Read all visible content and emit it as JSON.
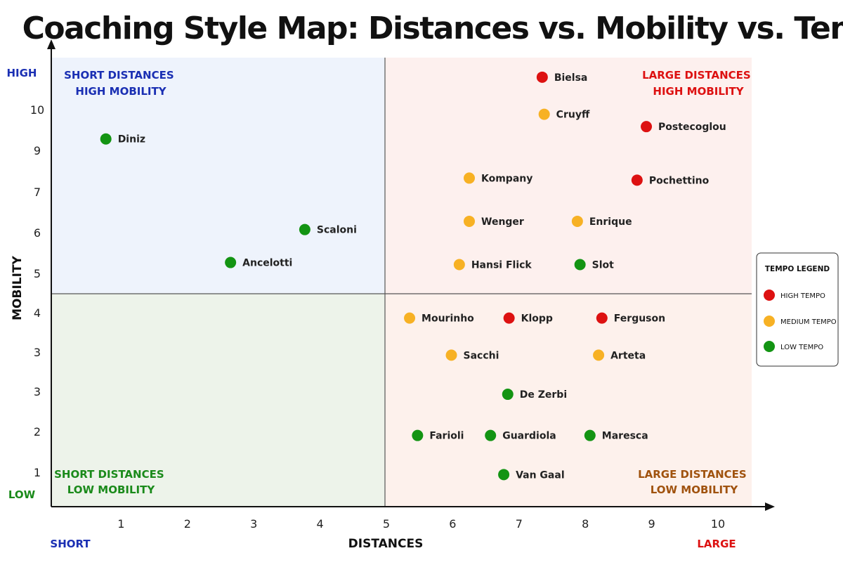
{
  "chart_data": {
    "type": "scatter",
    "title": "Coaching Style Map: Distances vs. Mobility vs. Tempo",
    "xlabel": "DISTANCES",
    "ylabel": "MOBILITY",
    "x_end_labels": {
      "low": "SHORT",
      "high": "LARGE"
    },
    "y_end_labels": {
      "low": "LOW",
      "high": "HIGH"
    },
    "x_ticks": [
      "1",
      "2",
      "3",
      "4",
      "5",
      "6",
      "7",
      "8",
      "9",
      "10"
    ],
    "y_ticks": [
      "1",
      "2",
      "3",
      "3",
      "4",
      "5",
      "6",
      "7",
      "9",
      "10"
    ],
    "xlim": [
      0,
      10.6
    ],
    "ylim": [
      0,
      11
    ],
    "quadrant_divider": {
      "x": 5,
      "y": 4.6
    },
    "quadrants": [
      {
        "key": "tl",
        "lines": [
          "SHORT DISTANCES",
          "HIGH MOBILITY"
        ],
        "color": "#1a2fb3",
        "fill": "#eef3fc"
      },
      {
        "key": "tr",
        "lines": [
          "LARGE DISTANCES",
          "HIGH MOBILITY"
        ],
        "color": "#dd1111",
        "fill": "#fdf0ee"
      },
      {
        "key": "bl",
        "lines": [
          "SHORT DISTANCES",
          "LOW MOBILITY"
        ],
        "color": "#1a8a1a",
        "fill": "#edf3ea"
      },
      {
        "key": "br",
        "lines": [
          "LARGE DISTANCES",
          "LOW MOBILITY"
        ],
        "color": "#a0520e",
        "fill": "#fdf1ec"
      }
    ],
    "legend": {
      "title": "TEMPO LEGEND",
      "position": "right",
      "entries": [
        {
          "key": "high",
          "label": "HIGH TEMPO",
          "color": "#dd1111"
        },
        {
          "key": "medium",
          "label": "MEDIUM TEMPO",
          "color": "#f7b124"
        },
        {
          "key": "low",
          "label": "LOW TEMPO",
          "color": "#139413"
        }
      ]
    },
    "points": [
      {
        "name": "Diniz",
        "x": 0.77,
        "y": 9.1,
        "tempo": "low"
      },
      {
        "name": "Scaloni",
        "x": 3.77,
        "y": 6.9,
        "tempo": "low"
      },
      {
        "name": "Ancelotti",
        "x": 2.65,
        "y": 6.1,
        "tempo": "low"
      },
      {
        "name": "Bielsa",
        "x": 7.35,
        "y": 10.6,
        "tempo": "high"
      },
      {
        "name": "Cruyff",
        "x": 7.38,
        "y": 9.7,
        "tempo": "medium"
      },
      {
        "name": "Postecoglou",
        "x": 8.92,
        "y": 9.4,
        "tempo": "high"
      },
      {
        "name": "Kompany",
        "x": 6.25,
        "y": 8.15,
        "tempo": "medium"
      },
      {
        "name": "Pochettino",
        "x": 8.78,
        "y": 8.1,
        "tempo": "high"
      },
      {
        "name": "Wenger",
        "x": 6.25,
        "y": 7.1,
        "tempo": "medium"
      },
      {
        "name": "Enrique",
        "x": 7.88,
        "y": 7.1,
        "tempo": "medium"
      },
      {
        "name": "Hansi Flick",
        "x": 6.1,
        "y": 6.05,
        "tempo": "medium"
      },
      {
        "name": "Slot",
        "x": 7.92,
        "y": 6.05,
        "tempo": "low"
      },
      {
        "name": "Mourinho",
        "x": 5.35,
        "y": 4.75,
        "tempo": "medium"
      },
      {
        "name": "Klopp",
        "x": 6.85,
        "y": 4.75,
        "tempo": "high"
      },
      {
        "name": "Ferguson",
        "x": 8.25,
        "y": 4.75,
        "tempo": "high"
      },
      {
        "name": "Sacchi",
        "x": 5.98,
        "y": 3.85,
        "tempo": "medium"
      },
      {
        "name": "Arteta",
        "x": 8.2,
        "y": 3.85,
        "tempo": "medium"
      },
      {
        "name": "De Zerbi",
        "x": 6.83,
        "y": 2.9,
        "tempo": "low"
      },
      {
        "name": "Farioli",
        "x": 5.47,
        "y": 1.9,
        "tempo": "low"
      },
      {
        "name": "Guardiola",
        "x": 6.57,
        "y": 1.9,
        "tempo": "low"
      },
      {
        "name": "Maresca",
        "x": 8.07,
        "y": 1.9,
        "tempo": "low"
      },
      {
        "name": "Van Gaal",
        "x": 6.77,
        "y": 0.95,
        "tempo": "low"
      }
    ]
  }
}
